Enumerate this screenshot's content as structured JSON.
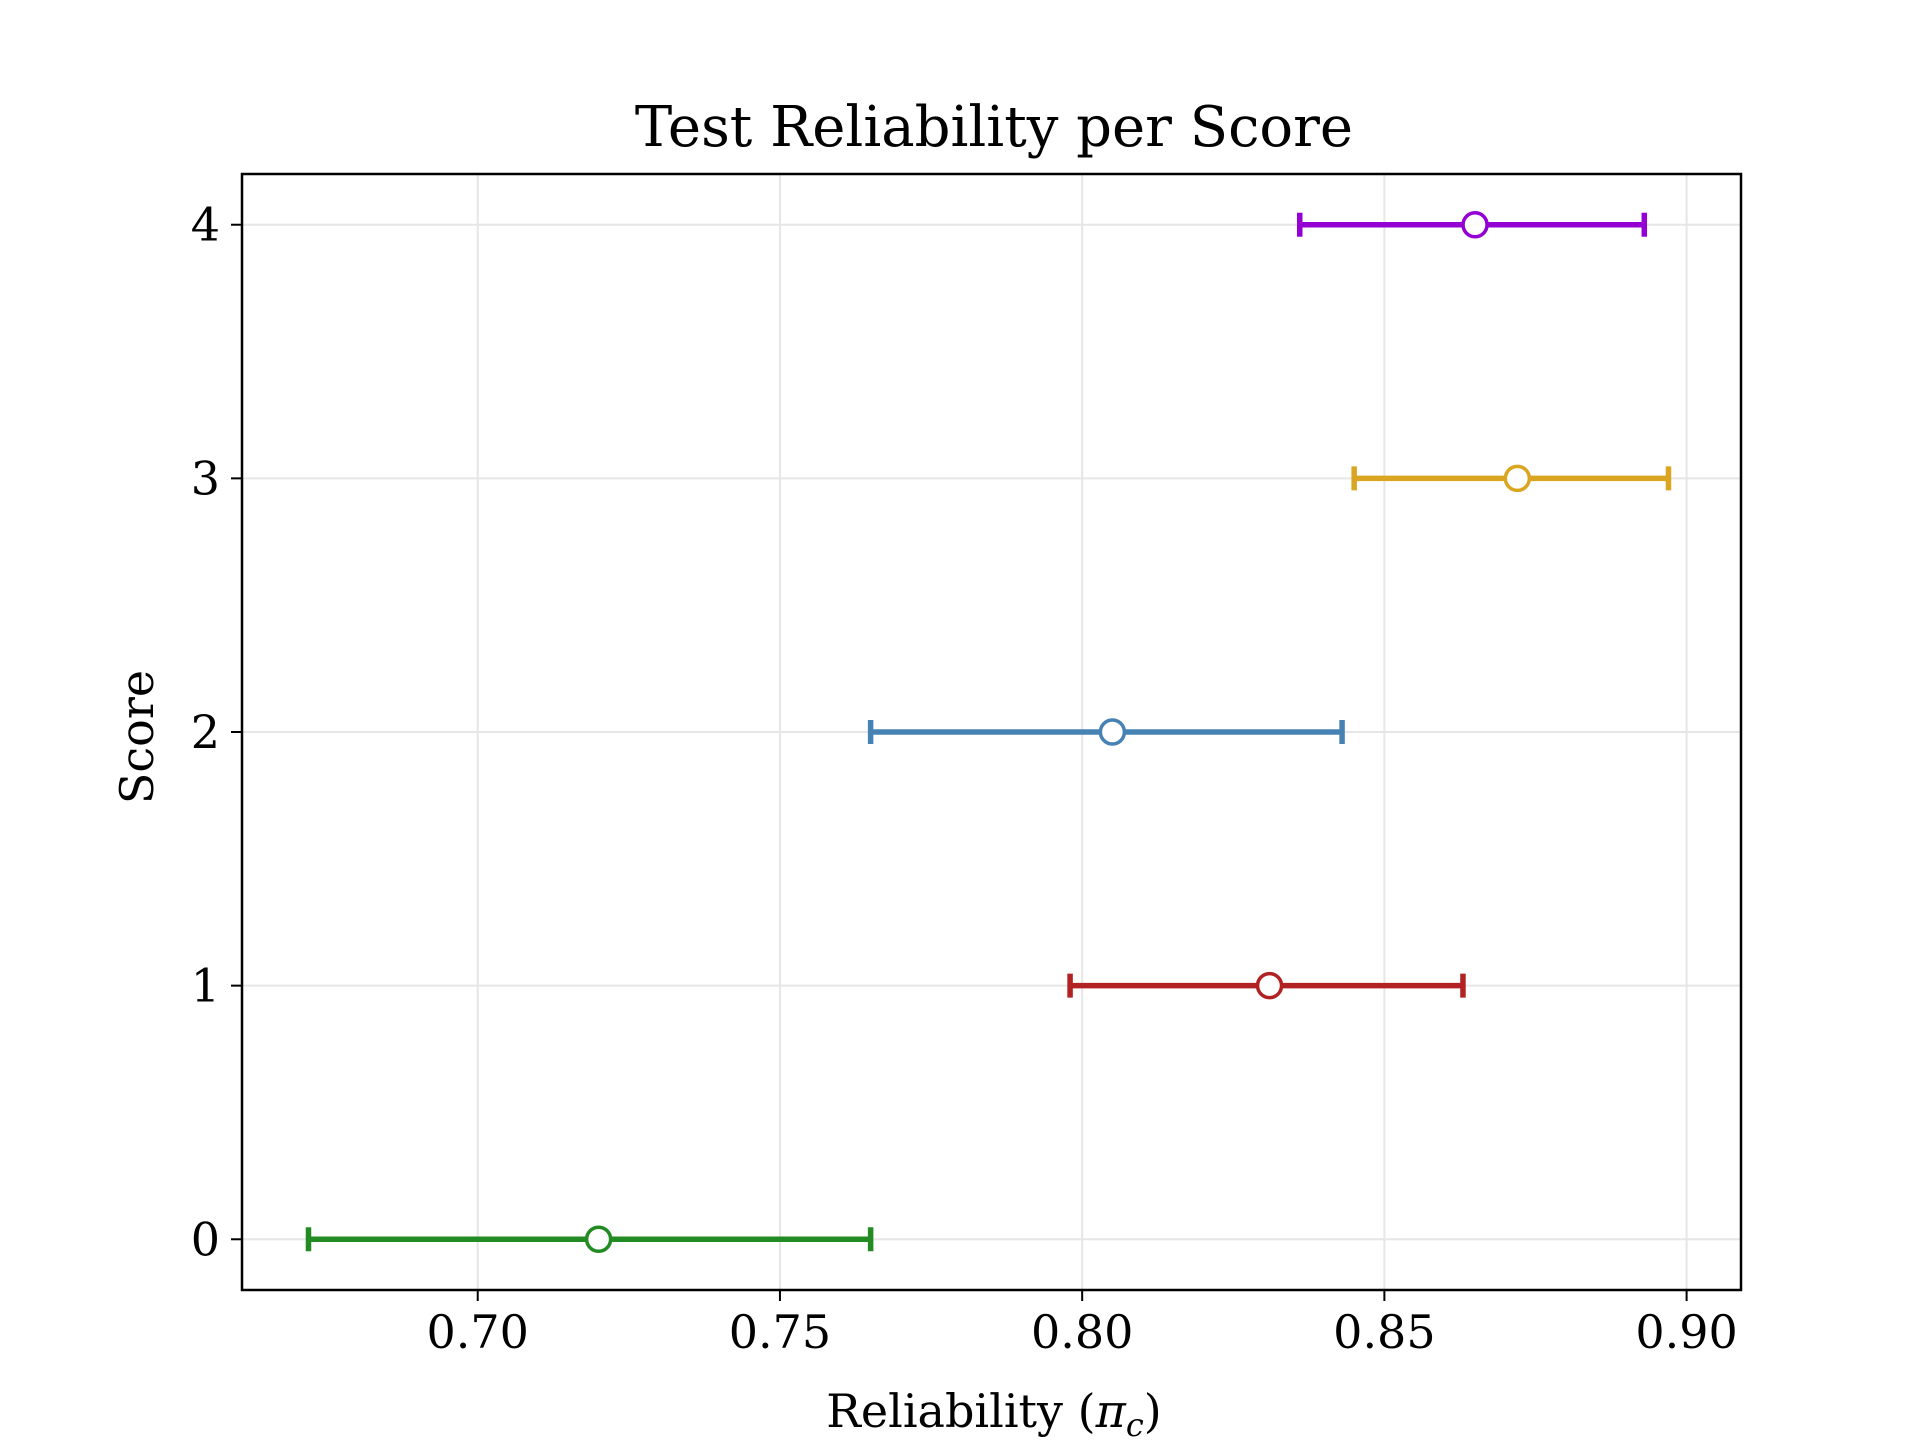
{
  "chart_data": {
    "type": "errorbar",
    "orientation": "horizontal",
    "title": "Test Reliability per Score",
    "xlabel": "Reliability (",
    "xlabel_symbol": "π",
    "xlabel_subscript": "c",
    "xlabel_end": ")",
    "ylabel": "Score",
    "xlim": [
      0.661,
      0.909
    ],
    "ylim": [
      -0.2,
      4.2
    ],
    "x_ticks": [
      0.7,
      0.75,
      0.8,
      0.85,
      0.9
    ],
    "x_tick_labels": [
      "0.70",
      "0.75",
      "0.80",
      "0.85",
      "0.90"
    ],
    "y_ticks": [
      0,
      1,
      2,
      3,
      4
    ],
    "y_tick_labels": [
      "0",
      "1",
      "2",
      "3",
      "4"
    ],
    "grid": true,
    "legend": "none",
    "marker": "open-circle",
    "points": [
      {
        "score": 0,
        "estimate": 0.72,
        "lower": 0.672,
        "upper": 0.765,
        "color": "#228b22"
      },
      {
        "score": 1,
        "estimate": 0.831,
        "lower": 0.798,
        "upper": 0.863,
        "color": "#b22222"
      },
      {
        "score": 2,
        "estimate": 0.805,
        "lower": 0.765,
        "upper": 0.843,
        "color": "#4682b4"
      },
      {
        "score": 3,
        "estimate": 0.872,
        "lower": 0.845,
        "upper": 0.897,
        "color": "#daa520"
      },
      {
        "score": 4,
        "estimate": 0.865,
        "lower": 0.836,
        "upper": 0.893,
        "color": "#9400d3"
      }
    ]
  }
}
